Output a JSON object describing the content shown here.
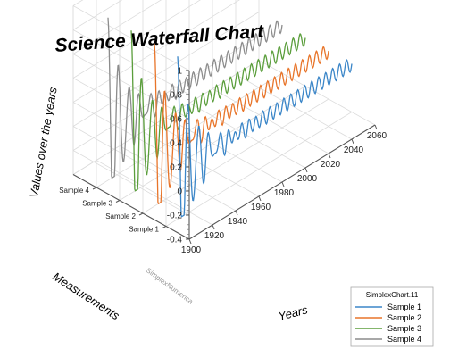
{
  "chart_data": {
    "type": "line",
    "title": "Science Waterfall Chart",
    "xlabel": "Years",
    "ylabel": "Values over the years",
    "zlabel": "Measurements",
    "x_ticks": [
      "1900",
      "1920",
      "1940",
      "1960",
      "1980",
      "2000",
      "2020",
      "2040",
      "2060"
    ],
    "y_ticks": [
      "-0.4",
      "-0.2",
      "0",
      "0.2",
      "0.4",
      "0.6",
      "0.8",
      "1"
    ],
    "z_ticks": [
      "Sample 1",
      "Sample 2",
      "Sample 3",
      "Sample 4"
    ],
    "xlim": [
      1900,
      2060
    ],
    "ylim": [
      -0.4,
      1
    ],
    "watermark": "SimplexNumerica",
    "legend": {
      "title": "SimplexChart.11",
      "placement": "bottom-right"
    },
    "series": [
      {
        "name": "Sample 1",
        "color": "#3b86c8",
        "start_x": 1910,
        "end_x": 2060,
        "peak": 0.95,
        "decay": 14,
        "period": 9,
        "amplitude_end": 0.06
      },
      {
        "name": "Sample 2",
        "color": "#e8752a",
        "start_x": 1910,
        "end_x": 2060,
        "peak": 0.95,
        "decay": 14,
        "period": 9,
        "amplitude_end": 0.06
      },
      {
        "name": "Sample 3",
        "color": "#5b9e3c",
        "start_x": 1910,
        "end_x": 2060,
        "peak": 0.95,
        "decay": 14,
        "period": 9,
        "amplitude_end": 0.06
      },
      {
        "name": "Sample 4",
        "color": "#8c8c8c",
        "start_x": 1910,
        "end_x": 2060,
        "peak": 0.95,
        "decay": 14,
        "period": 9,
        "amplitude_end": 0.06
      }
    ],
    "grid": true
  }
}
